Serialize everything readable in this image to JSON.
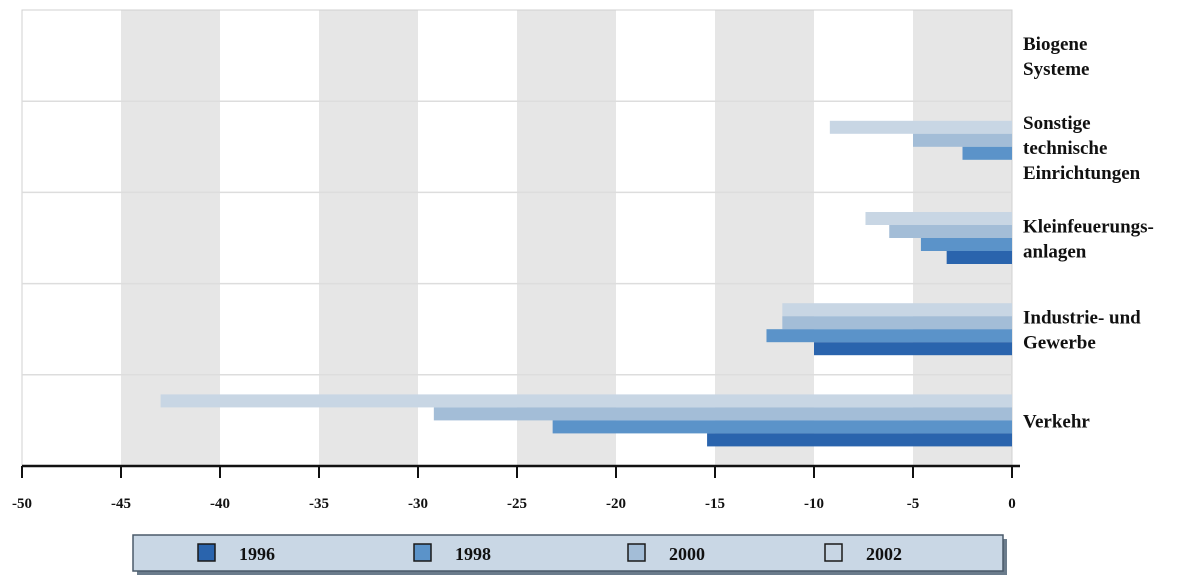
{
  "chart_data": {
    "type": "bar",
    "orientation": "horizontal",
    "title": "",
    "xlabel": "",
    "ylabel": "",
    "xlim": [
      -50,
      0
    ],
    "xticks": [
      -50,
      -45,
      -40,
      -35,
      -30,
      -25,
      -20,
      -15,
      -10,
      -5,
      0
    ],
    "xtick_labels": [
      "-50",
      "-45",
      "-40",
      "-35",
      "-30",
      "-25",
      "-20",
      "-15",
      "-10",
      "-5",
      "0"
    ],
    "grid": true,
    "legend_position": "bottom",
    "categories": [
      {
        "lines": [
          "Biogene",
          "Systeme"
        ]
      },
      {
        "lines": [
          "Sonstige",
          "technische",
          "Einrichtungen"
        ]
      },
      {
        "lines": [
          "Kleinfeuerungs-",
          "anlagen"
        ]
      },
      {
        "lines": [
          "Industrie- und",
          "Gewerbe"
        ]
      },
      {
        "lines": [
          "Verkehr"
        ]
      }
    ],
    "series": [
      {
        "name": "2002",
        "color": "#c8d6e4",
        "values": [
          0,
          -9.2,
          -7.4,
          -11.6,
          -43.0
        ]
      },
      {
        "name": "2000",
        "color": "#a3bdd7",
        "values": [
          0,
          -5.0,
          -6.2,
          -11.6,
          -29.2
        ]
      },
      {
        "name": "1998",
        "color": "#5b93c9",
        "values": [
          0,
          -2.5,
          -4.6,
          -12.4,
          -23.2
        ]
      },
      {
        "name": "1996",
        "color": "#2a64ad",
        "values": [
          0,
          0,
          -3.3,
          -10.0,
          -15.4
        ]
      }
    ],
    "legend_order": [
      "1996",
      "1998",
      "2000",
      "2002"
    ]
  }
}
